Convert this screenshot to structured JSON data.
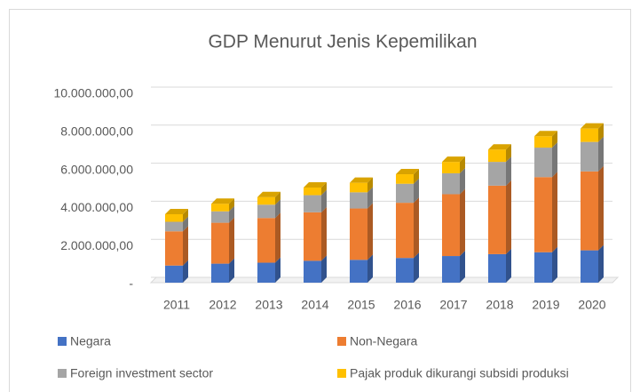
{
  "chart_data": {
    "type": "bar3d_stacked",
    "title": "GDP Menurut Jenis Kepemilikan",
    "categories": [
      "2011",
      "2012",
      "2013",
      "2014",
      "2015",
      "2016",
      "2017",
      "2018",
      "2019",
      "2020"
    ],
    "series": [
      {
        "name": "Negara",
        "color": "#4472c4",
        "values": [
          900000,
          1000000,
          1050000,
          1150000,
          1200000,
          1300000,
          1400000,
          1500000,
          1600000,
          1700000
        ]
      },
      {
        "name": "Non-Negara",
        "color": "#ed7d31",
        "values": [
          1800000,
          2150000,
          2350000,
          2550000,
          2700000,
          2900000,
          3250000,
          3600000,
          3950000,
          4150000
        ]
      },
      {
        "name": "Foreign investment sector",
        "color": "#a5a5a5",
        "values": [
          500000,
          600000,
          700000,
          900000,
          850000,
          1000000,
          1100000,
          1250000,
          1550000,
          1550000
        ]
      },
      {
        "name": "Pajak produk dikurangi subsidi produksi",
        "color": "#ffc000",
        "values": [
          400000,
          400000,
          400000,
          400000,
          500000,
          500000,
          600000,
          650000,
          600000,
          700000
        ]
      }
    ],
    "ylim": [
      0,
      10000000
    ],
    "yticks": [
      {
        "value": 0,
        "label": "-"
      },
      {
        "value": 2000000,
        "label": "2.000.000,00"
      },
      {
        "value": 4000000,
        "label": "4.000.000,00"
      },
      {
        "value": 6000000,
        "label": "6.000.000,00"
      },
      {
        "value": 8000000,
        "label": "8.000.000,00"
      },
      {
        "value": 10000000,
        "label": "10.000.000,00"
      }
    ],
    "grid": true
  }
}
